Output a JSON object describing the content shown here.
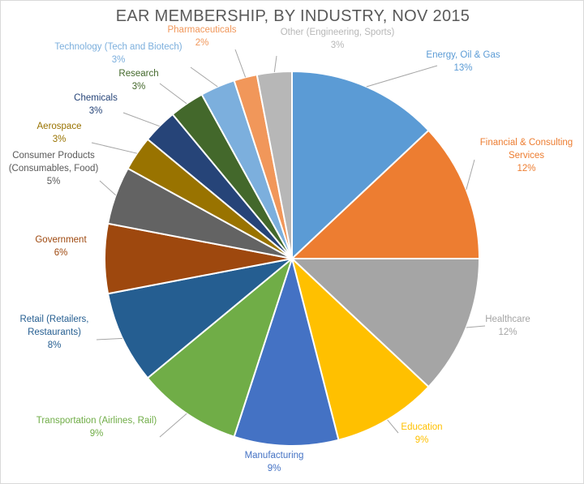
{
  "chart_data": {
    "type": "pie",
    "title": "EAR MEMBERSHIP, BY INDUSTRY, NOV 2015",
    "slices": [
      {
        "name": "Energy, Oil & Gas",
        "value": 13,
        "label_lines": [
          "Energy, Oil & Gas"
        ],
        "pct_label": "13%",
        "color": "#5B9BD5",
        "label_color": "#5B9BD5"
      },
      {
        "name": "Financial & Consulting Services",
        "value": 12,
        "label_lines": [
          "Financial  & Consulting",
          "Services"
        ],
        "pct_label": "12%",
        "color": "#ED7D31",
        "label_color": "#ED7D31"
      },
      {
        "name": "Healthcare",
        "value": 12,
        "label_lines": [
          "Healthcare"
        ],
        "pct_label": "12%",
        "color": "#A5A5A5",
        "label_color": "#A5A5A5"
      },
      {
        "name": "Education",
        "value": 9,
        "label_lines": [
          "Education"
        ],
        "pct_label": "9%",
        "color": "#FFC000",
        "label_color": "#FFC000"
      },
      {
        "name": "Manufacturing",
        "value": 9,
        "label_lines": [
          "Manufacturing"
        ],
        "pct_label": "9%",
        "color": "#4472C4",
        "label_color": "#4472C4"
      },
      {
        "name": "Transportation (Airlines, Rail)",
        "value": 9,
        "label_lines": [
          "Transportation (Airlines, Rail)"
        ],
        "pct_label": "9%",
        "color": "#70AD47",
        "label_color": "#70AD47"
      },
      {
        "name": "Retail (Retailers, Restaurants)",
        "value": 8,
        "label_lines": [
          "Retail (Retailers,",
          "Restaurants)"
        ],
        "pct_label": "8%",
        "color": "#255E91",
        "label_color": "#255E91"
      },
      {
        "name": "Government",
        "value": 6,
        "label_lines": [
          "Government"
        ],
        "pct_label": "6%",
        "color": "#9E480E",
        "label_color": "#9E480E"
      },
      {
        "name": "Consumer Products (Consumables, Food)",
        "value": 5,
        "label_lines": [
          "Consumer Products",
          "(Consumables, Food)"
        ],
        "pct_label": "5%",
        "color": "#636363",
        "label_color": "#595959"
      },
      {
        "name": "Aerospace",
        "value": 3,
        "label_lines": [
          "Aerospace"
        ],
        "pct_label": "3%",
        "color": "#997300",
        "label_color": "#997300"
      },
      {
        "name": "Chemicals",
        "value": 3,
        "label_lines": [
          "Chemicals"
        ],
        "pct_label": "3%",
        "color": "#264478",
        "label_color": "#264478"
      },
      {
        "name": "Research",
        "value": 3,
        "label_lines": [
          "Research"
        ],
        "pct_label": "3%",
        "color": "#43682B",
        "label_color": "#43682B"
      },
      {
        "name": "Technology (Tech and Biotech)",
        "value": 3,
        "label_lines": [
          "Technology (Tech and Biotech)"
        ],
        "pct_label": "3%",
        "color": "#7CAFDD",
        "label_color": "#7CAFDD"
      },
      {
        "name": "Pharmaceuticals",
        "value": 2,
        "label_lines": [
          "Pharmaceuticals"
        ],
        "pct_label": "2%",
        "color": "#F1975A",
        "label_color": "#F1975A"
      },
      {
        "name": "Other (Engineering, Sports)",
        "value": 3,
        "label_lines": [
          "Other (Engineering, Sports)"
        ],
        "pct_label": "3%",
        "color": "#B7B7B7",
        "label_color": "#B7B7B7"
      }
    ],
    "start_angle_deg": 0,
    "direction": "clockwise",
    "legend": "none",
    "data_labels": "outside-with-leader-lines"
  }
}
